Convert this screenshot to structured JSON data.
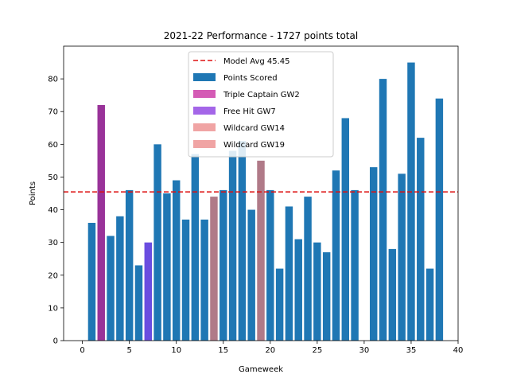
{
  "chart_data": {
    "type": "bar",
    "title": "2021-22 Performance - 1727 points total",
    "xlabel": "Gameweek",
    "ylabel": "Points",
    "xlim": [
      -2,
      40
    ],
    "ylim": [
      0,
      90
    ],
    "xticks": [
      0,
      5,
      10,
      15,
      20,
      25,
      30,
      35,
      40
    ],
    "yticks": [
      0,
      10,
      20,
      30,
      40,
      50,
      60,
      70,
      80
    ],
    "grid": false,
    "legend_position": "top-center",
    "reference_line": {
      "label": "Model Avg 45.45",
      "value": 45.45,
      "color": "#dd1111",
      "style": "dashed"
    },
    "series": [
      {
        "name": "Points Scored",
        "color": "#1f77b4",
        "x": [
          1,
          3,
          4,
          5,
          6,
          8,
          9,
          10,
          11,
          12,
          13,
          15,
          16,
          17,
          18,
          20,
          21,
          22,
          23,
          24,
          25,
          26,
          27,
          28,
          29,
          31,
          32,
          33,
          34,
          35,
          36,
          37,
          38
        ],
        "values": [
          36,
          32,
          38,
          46,
          23,
          60,
          45,
          49,
          37,
          57,
          37,
          46,
          58,
          61,
          40,
          46,
          22,
          41,
          31,
          44,
          30,
          27,
          52,
          68,
          46,
          53,
          80,
          28,
          51,
          85,
          62,
          22,
          74
        ]
      },
      {
        "name": "Triple Captain GW2",
        "color": "#993399",
        "x": [
          2
        ],
        "values": [
          72
        ]
      },
      {
        "name": "Free Hit GW7",
        "color": "#6a4de0",
        "x": [
          7
        ],
        "values": [
          30
        ]
      },
      {
        "name": "Wildcard GW14",
        "color": "#b07a88",
        "x": [
          14
        ],
        "values": [
          44
        ]
      },
      {
        "name": "Wildcard GW19",
        "color": "#b07a88",
        "x": [
          19
        ],
        "values": [
          55
        ]
      }
    ],
    "legend_entries": [
      {
        "label": "Model Avg 45.45",
        "kind": "line",
        "color": "#dd1111"
      },
      {
        "label": "Points Scored",
        "kind": "patch",
        "color": "#1f77b4"
      },
      {
        "label": "Triple Captain GW2",
        "kind": "patch",
        "color": "#d45bb5"
      },
      {
        "label": "Free Hit GW7",
        "kind": "patch",
        "color": "#a466e8"
      },
      {
        "label": "Wildcard GW14",
        "kind": "patch",
        "color": "#f0a4a4"
      },
      {
        "label": "Wildcard GW19",
        "kind": "patch",
        "color": "#f0a4a4"
      }
    ]
  }
}
